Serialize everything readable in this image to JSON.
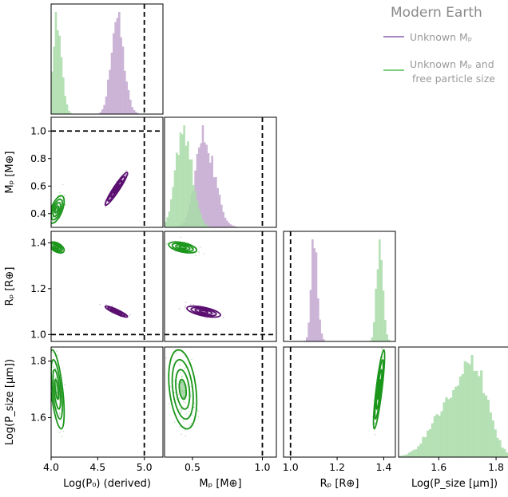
{
  "legend": {
    "title": "Modern Earth",
    "entries": [
      {
        "label": "Unknown Mₚ",
        "color": "#a886c0"
      },
      {
        "label_line1": "Unknown Mₚ and",
        "label_line2": "free particle size",
        "color": "#7fcf7f"
      }
    ]
  },
  "colors": {
    "purple_hist": "#c8b0d4",
    "green_hist": "#a9dca9",
    "purple_contour": "#5b0f70",
    "green_contour": "#1b961b",
    "truth_line": "#000000"
  },
  "chart_data": {
    "type": "corner",
    "parameters": [
      {
        "id": "logP0",
        "axis_label": "Log(P₀) (derived)",
        "range": [
          4.0,
          5.2
        ],
        "ticks": [
          "4.0",
          "4.5",
          "5.0"
        ],
        "tick_values": [
          4.0,
          4.5,
          5.0
        ],
        "truth": 5.0
      },
      {
        "id": "Mp",
        "axis_label": "Mₚ [M⊕]",
        "range": [
          0.3,
          1.1
        ],
        "ticks": [
          "0.5",
          "1.0"
        ],
        "tick_values": [
          0.5,
          1.0
        ],
        "truth": 1.0,
        "y_ticks": [
          "0.4",
          "0.6",
          "0.8",
          "1.0"
        ],
        "y_tick_values": [
          0.4,
          0.6,
          0.8,
          1.0
        ]
      },
      {
        "id": "Rp",
        "axis_label": "Rₚ [R⊕]",
        "range": [
          0.97,
          1.45
        ],
        "ticks": [
          "1.0",
          "1.2",
          "1.4"
        ],
        "tick_values": [
          1.0,
          1.2,
          1.4
        ],
        "truth": 1.0,
        "y_ticks": [
          "1.0",
          "1.2",
          "1.4"
        ],
        "y_tick_values": [
          1.0,
          1.2,
          1.4
        ]
      },
      {
        "id": "Psize",
        "axis_label": "Log(P_size [μm])",
        "range": [
          1.46,
          1.85
        ],
        "ticks": [
          "1.6",
          "1.8"
        ],
        "tick_values": [
          1.6,
          1.8
        ],
        "truth": null,
        "y_ticks": [
          "1.6",
          "1.8"
        ],
        "y_tick_values": [
          1.6,
          1.8
        ]
      }
    ],
    "ylabels": {
      "Mp": "Mₚ [M⊕]",
      "Rp": "Rₚ [R⊕]",
      "Psize": "Log(P_size [μm])"
    },
    "series": [
      {
        "name": "Unknown Mₚ",
        "color": "#a886c0",
        "posteriors": {
          "logP0": {
            "mean": 4.7,
            "sd": 0.06
          },
          "Mp": {
            "mean": 0.58,
            "sd": 0.06
          },
          "Rp": {
            "mean": 1.1,
            "sd": 0.012
          }
        },
        "correlations": {
          "logP0_Mp": 0.95,
          "logP0_Rp": -0.9,
          "Mp_Rp": -0.6
        }
      },
      {
        "name": "Unknown Mₚ and free particle size",
        "color": "#7fcf7f",
        "posteriors": {
          "logP0": {
            "mean": 4.06,
            "sd": 0.04
          },
          "Mp": {
            "mean": 0.43,
            "sd": 0.05
          },
          "Rp": {
            "mean": 1.38,
            "sd": 0.012
          },
          "Psize": {
            "mean": 1.7,
            "sd": 0.07
          }
        },
        "correlations": {
          "logP0_Mp": 0.6,
          "logP0_Rp": -0.5,
          "logP0_Psize": -0.6,
          "Mp_Rp": -0.5,
          "Mp_Psize": -0.3,
          "Rp_Psize": 0.85
        }
      }
    ],
    "grid": false,
    "legend_position": "top-right"
  }
}
